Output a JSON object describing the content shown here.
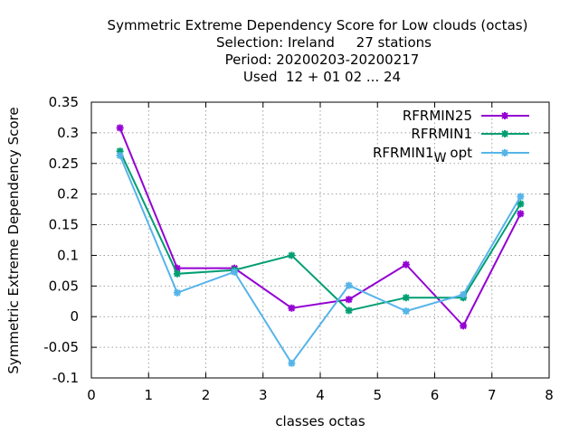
{
  "chart_data": {
    "type": "line",
    "title_lines": [
      "Symmetric Extreme Dependency Score  for Low clouds (octas)",
      "Selection: Ireland     27 stations",
      "Period: 20200203-20200217",
      "Used  12 + 01 02 ... 24"
    ],
    "xlabel": "classes octas",
    "ylabel": "Symmetric Extreme Dependency Score",
    "xlim": [
      0,
      8
    ],
    "ylim": [
      -0.1,
      0.35
    ],
    "xticks": [
      "0",
      "1",
      "2",
      "3",
      "4",
      "5",
      "6",
      "7",
      "8"
    ],
    "yticks": [
      "-0.1",
      "-0.05",
      "0",
      "0.05",
      "0.1",
      "0.15",
      "0.2",
      "0.25",
      "0.3",
      "0.35"
    ],
    "grid": true,
    "legend_position": "top-right",
    "x": [
      0.5,
      1.5,
      2.5,
      3.5,
      4.5,
      5.5,
      6.5,
      7.5
    ],
    "series": [
      {
        "name": "RFRMIN25",
        "name_sub": "",
        "name_suffix": "",
        "color": "#9400d3",
        "values": [
          0.308,
          0.079,
          0.079,
          0.014,
          0.028,
          0.085,
          -0.015,
          0.168
        ]
      },
      {
        "name": "RFRMIN1",
        "name_sub": "",
        "name_suffix": "",
        "color": "#009e73",
        "values": [
          0.27,
          0.07,
          0.076,
          0.1,
          0.01,
          0.031,
          0.031,
          0.184
        ]
      },
      {
        "name": "RFRMIN1",
        "name_sub": "W",
        "name_suffix": "opt",
        "color": "#56b4e9",
        "values": [
          0.263,
          0.039,
          0.073,
          -0.076,
          0.051,
          0.009,
          0.036,
          0.196
        ]
      }
    ]
  }
}
